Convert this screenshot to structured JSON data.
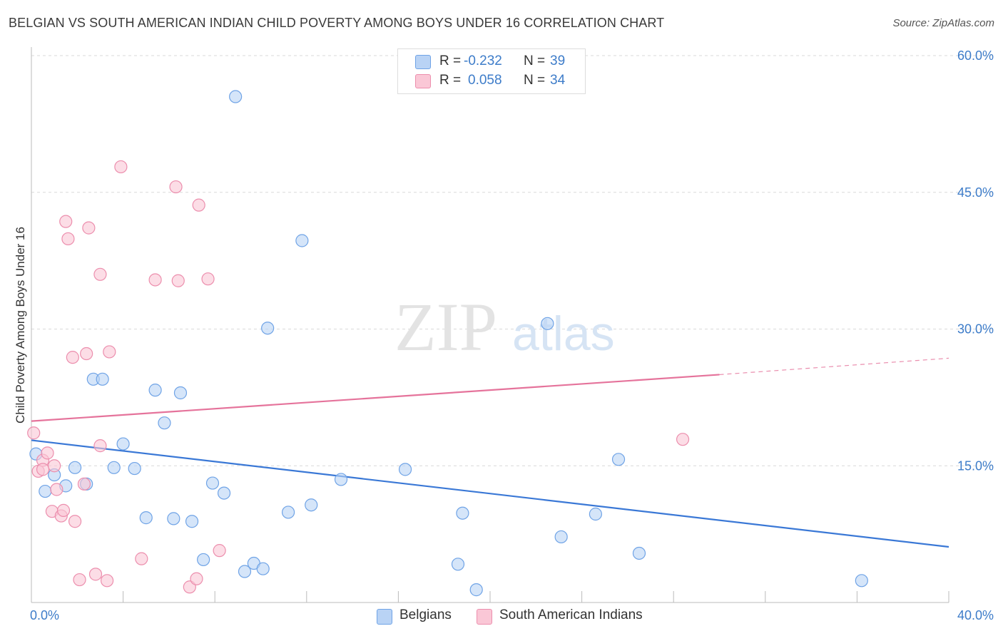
{
  "title": "BELGIAN VS SOUTH AMERICAN INDIAN CHILD POVERTY AMONG BOYS UNDER 16 CORRELATION CHART",
  "source": "Source: ZipAtlas.com",
  "watermark": {
    "zip": "ZIP",
    "atlas": "atlas"
  },
  "legend": {
    "rows": [
      {
        "r_label": "R =",
        "r_value": "-0.232",
        "n_label": "N =",
        "n_value": "39",
        "color": "#6fa3e6",
        "fill": "#b9d3f5"
      },
      {
        "r_label": "R =",
        "r_value": "0.058",
        "n_label": "N =",
        "n_value": "34",
        "color": "#ec8ead",
        "fill": "#fac7d6"
      }
    ]
  },
  "bottom_legend": {
    "belgians": "Belgians",
    "south_american_indians": "South American Indians"
  },
  "chart_data": {
    "type": "scatter",
    "title": "BELGIAN VS SOUTH AMERICAN INDIAN CHILD POVERTY AMONG BOYS UNDER 16 CORRELATION CHART",
    "xlabel": "",
    "ylabel": "Child Poverty Among Boys Under 16",
    "xlim": [
      0,
      40
    ],
    "ylim": [
      0,
      60
    ],
    "x_tick_labels": [
      {
        "value": 0,
        "label": "0.0%"
      },
      {
        "value": 40,
        "label": "40.0%"
      }
    ],
    "y_ticks": [
      {
        "value": 15,
        "label": "15.0%"
      },
      {
        "value": 30,
        "label": "30.0%"
      },
      {
        "value": 45,
        "label": "45.0%"
      },
      {
        "value": 60,
        "label": "60.0%"
      }
    ],
    "series": [
      {
        "name": "Belgians",
        "color": "#3a78d6",
        "fill": "#b9d3f5",
        "stroke": "#6fa3e6",
        "R": -0.232,
        "N": 39,
        "points": [
          [
            0.2,
            16.3
          ],
          [
            0.6,
            12.2
          ],
          [
            1.0,
            14.0
          ],
          [
            1.5,
            12.8
          ],
          [
            1.9,
            14.8
          ],
          [
            2.4,
            13.0
          ],
          [
            2.7,
            24.5
          ],
          [
            3.1,
            24.5
          ],
          [
            3.6,
            14.8
          ],
          [
            4.0,
            17.4
          ],
          [
            4.5,
            14.7
          ],
          [
            5.0,
            9.3
          ],
          [
            5.4,
            23.3
          ],
          [
            5.8,
            19.7
          ],
          [
            6.2,
            9.2
          ],
          [
            6.5,
            23.0
          ],
          [
            7.0,
            8.9
          ],
          [
            7.5,
            4.7
          ],
          [
            7.9,
            13.1
          ],
          [
            8.4,
            12.0
          ],
          [
            8.9,
            55.5
          ],
          [
            9.3,
            3.4
          ],
          [
            9.7,
            4.3
          ],
          [
            10.1,
            3.7
          ],
          [
            10.3,
            30.1
          ],
          [
            11.2,
            9.9
          ],
          [
            11.8,
            39.7
          ],
          [
            12.2,
            10.7
          ],
          [
            13.5,
            13.5
          ],
          [
            16.3,
            14.6
          ],
          [
            18.6,
            4.2
          ],
          [
            18.8,
            9.8
          ],
          [
            19.4,
            1.4
          ],
          [
            22.5,
            30.6
          ],
          [
            23.1,
            7.2
          ],
          [
            24.6,
            9.7
          ],
          [
            25.6,
            15.7
          ],
          [
            26.5,
            5.4
          ],
          [
            36.2,
            2.4
          ]
        ],
        "trend": {
          "x1": 0,
          "y1": 17.8,
          "x2": 40,
          "y2": 6.1
        }
      },
      {
        "name": "South American Indians",
        "color": "#e5739b",
        "fill": "#fac7d6",
        "stroke": "#ec8ead",
        "R": 0.058,
        "N": 34,
        "points": [
          [
            0.1,
            18.6
          ],
          [
            0.3,
            14.4
          ],
          [
            0.5,
            15.6
          ],
          [
            0.5,
            14.6
          ],
          [
            0.7,
            16.4
          ],
          [
            0.9,
            10.0
          ],
          [
            1.0,
            15.0
          ],
          [
            1.1,
            12.4
          ],
          [
            1.3,
            9.5
          ],
          [
            1.4,
            10.1
          ],
          [
            1.5,
            41.8
          ],
          [
            1.6,
            39.9
          ],
          [
            1.8,
            26.9
          ],
          [
            1.9,
            8.9
          ],
          [
            2.1,
            2.5
          ],
          [
            2.3,
            13.0
          ],
          [
            2.4,
            27.3
          ],
          [
            2.5,
            41.1
          ],
          [
            2.8,
            3.1
          ],
          [
            3.0,
            17.2
          ],
          [
            3.0,
            36.0
          ],
          [
            3.3,
            2.4
          ],
          [
            3.4,
            27.5
          ],
          [
            3.9,
            47.8
          ],
          [
            4.8,
            4.8
          ],
          [
            5.4,
            35.4
          ],
          [
            6.3,
            45.6
          ],
          [
            6.4,
            35.3
          ],
          [
            6.9,
            1.7
          ],
          [
            7.2,
            2.6
          ],
          [
            7.3,
            43.6
          ],
          [
            7.7,
            35.5
          ],
          [
            8.2,
            5.7
          ],
          [
            28.4,
            17.9
          ]
        ],
        "trend": {
          "x1": 0,
          "y1": 19.9,
          "x2": 30,
          "y2": 25.0
        },
        "trend_extension": {
          "x1": 30,
          "y1": 25.0,
          "x2": 40,
          "y2": 26.8
        }
      }
    ]
  }
}
